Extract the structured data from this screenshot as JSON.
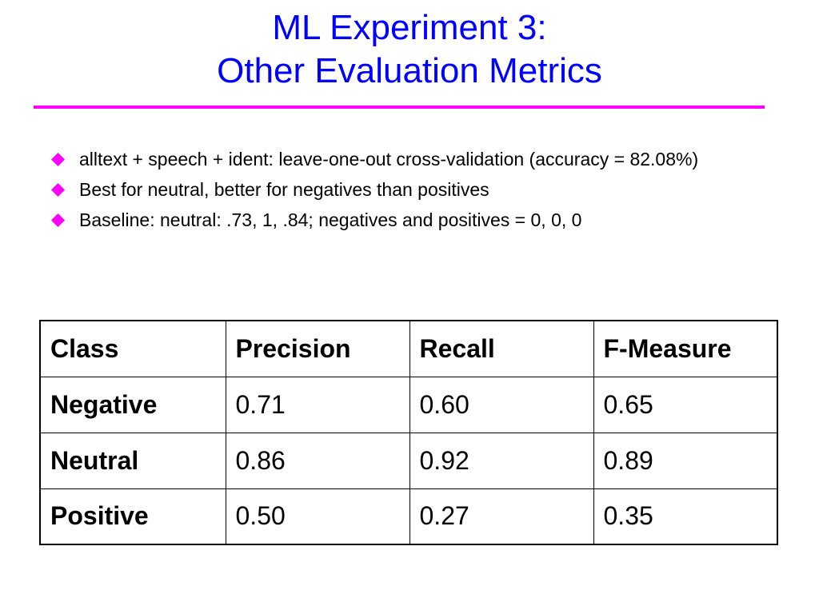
{
  "slide": {
    "title_line1": "ML Experiment 3:",
    "title_line2": "Other Evaluation Metrics",
    "bullet_icon": "diamond-icon",
    "colors": {
      "title": "#0000ff",
      "rule": "#ff00ff",
      "bullet": "#ff00ff",
      "text": "#000000"
    },
    "bullets": [
      "alltext + speech + ident: leave-one-out cross-validation (accuracy = 82.08%)",
      "Best for neutral, better for negatives than positives",
      "Baseline: neutral: .73, 1, .84; negatives and positives = 0, 0, 0"
    ]
  },
  "table": {
    "headers": [
      "Class",
      "Precision",
      "Recall",
      "F-Measure"
    ],
    "rows": [
      [
        "Negative",
        "0.71",
        "0.60",
        "0.65"
      ],
      [
        "Neutral",
        "0.86",
        "0.92",
        "0.89"
      ],
      [
        "Positive",
        "0.50",
        "0.27",
        "0.35"
      ]
    ]
  }
}
